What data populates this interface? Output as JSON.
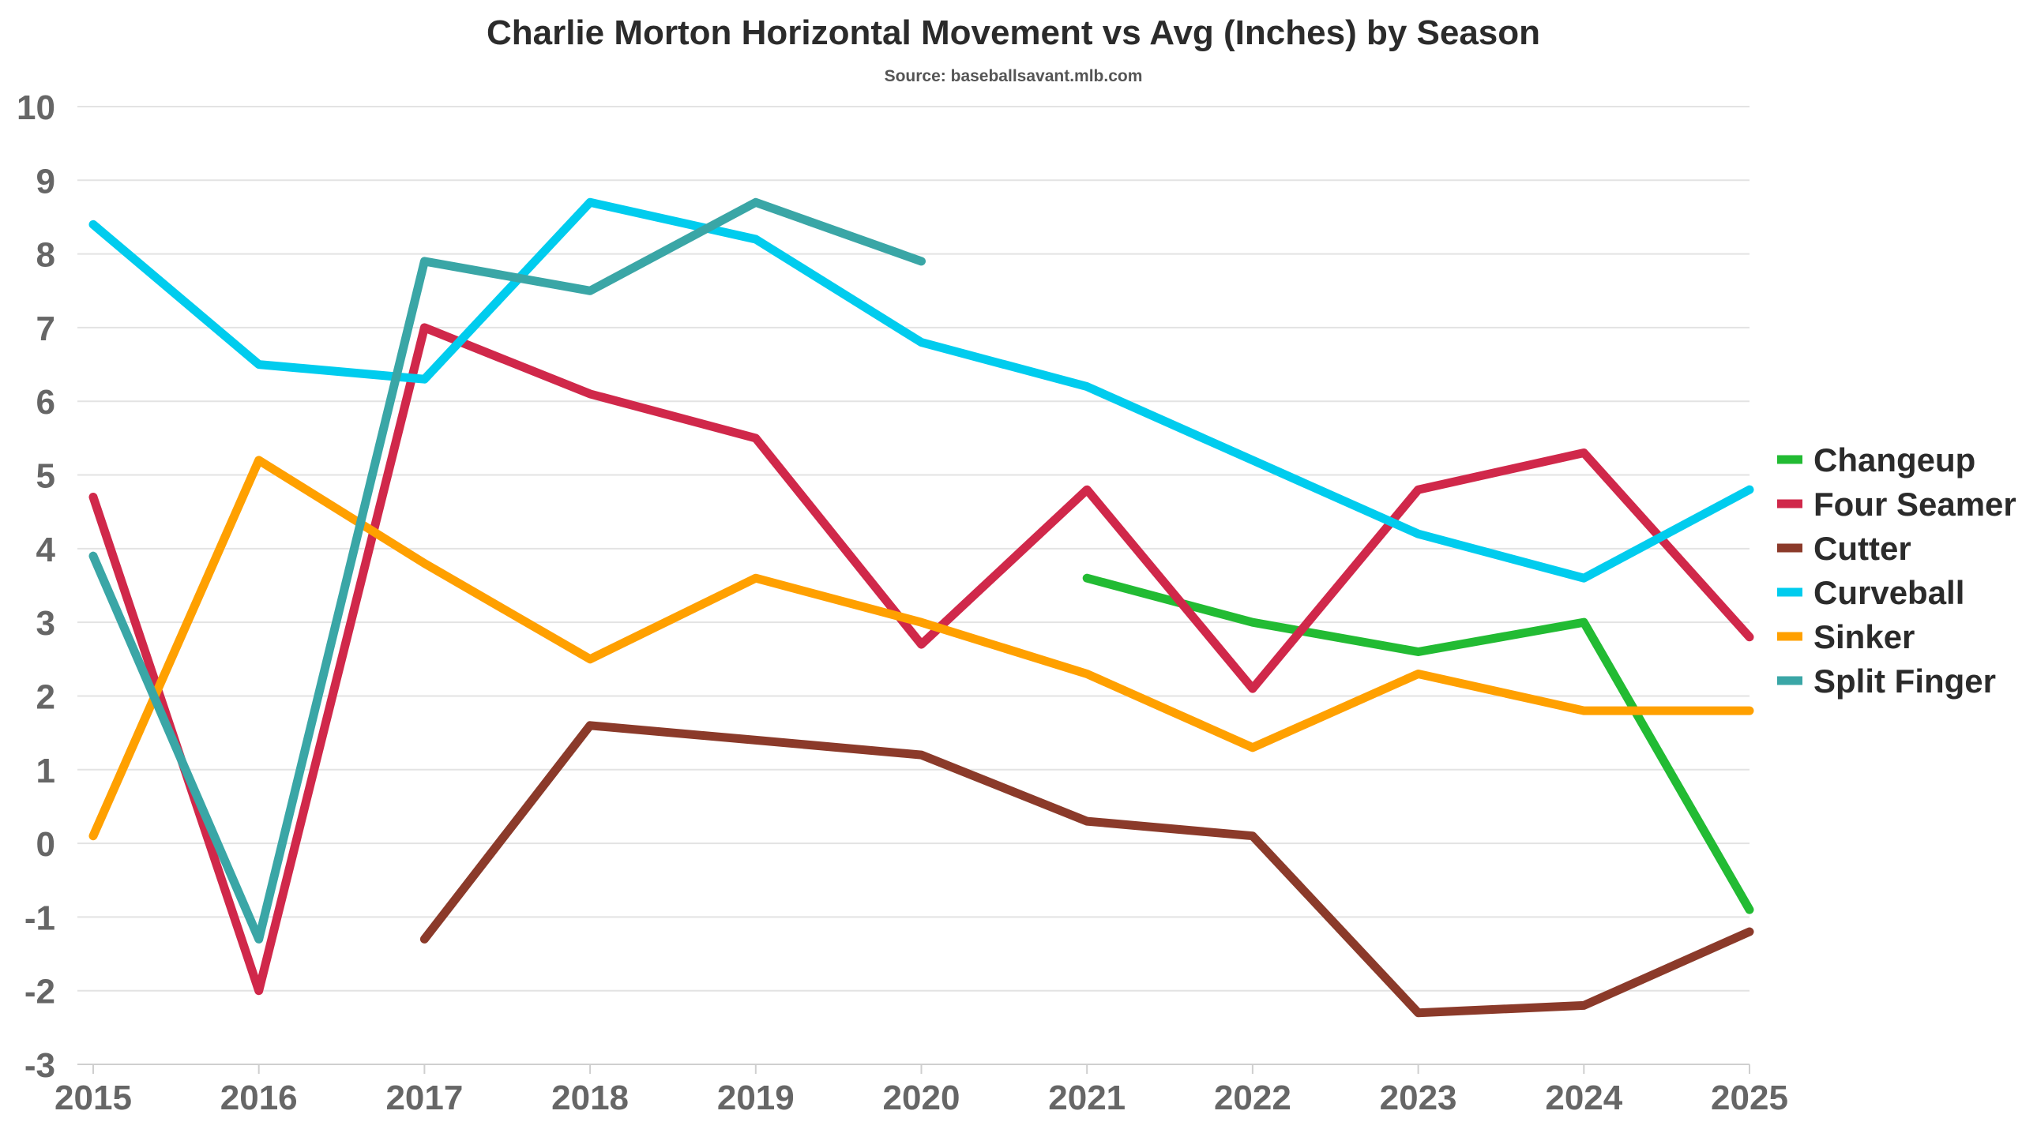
{
  "chart_data": {
    "type": "line",
    "title": "Charlie Morton Horizontal Movement vs Avg (Inches) by Season",
    "subtitle": "Source: baseballsavant.mlb.com",
    "xlabel": "",
    "ylabel": "",
    "x": [
      2015,
      2016,
      2017,
      2018,
      2019,
      2020,
      2021,
      2022,
      2023,
      2024,
      2025
    ],
    "ylim": [
      -3,
      10
    ],
    "yticks": [
      -3,
      -2,
      -1,
      0,
      1,
      2,
      3,
      4,
      5,
      6,
      7,
      8,
      9,
      10
    ],
    "grid": true,
    "legend_position": "right",
    "series": [
      {
        "name": "Changeup",
        "color": "#22bb33",
        "values": [
          null,
          null,
          null,
          null,
          null,
          null,
          3.6,
          3.0,
          2.6,
          3.0,
          -0.9
        ]
      },
      {
        "name": "Four Seamer",
        "color": "#d0284a",
        "values": [
          4.7,
          -2.0,
          7.0,
          6.1,
          5.5,
          2.7,
          4.8,
          2.1,
          4.8,
          5.3,
          2.8
        ]
      },
      {
        "name": "Cutter",
        "color": "#8b3a2a",
        "values": [
          null,
          null,
          -1.3,
          1.6,
          1.4,
          1.2,
          0.3,
          0.1,
          -2.3,
          -2.2,
          -1.2
        ]
      },
      {
        "name": "Curveball",
        "color": "#00ccee",
        "values": [
          8.4,
          6.5,
          6.3,
          8.7,
          8.2,
          6.8,
          6.2,
          5.2,
          4.2,
          3.6,
          4.8
        ]
      },
      {
        "name": "Sinker",
        "color": "#ffa000",
        "values": [
          0.1,
          5.2,
          3.8,
          2.5,
          3.6,
          3.0,
          2.3,
          1.3,
          2.3,
          1.8,
          1.8
        ]
      },
      {
        "name": "Split Finger",
        "color": "#3aa6a6",
        "values": [
          3.9,
          -1.3,
          7.9,
          7.5,
          8.7,
          7.9,
          null,
          null,
          null,
          null,
          null
        ]
      }
    ]
  }
}
